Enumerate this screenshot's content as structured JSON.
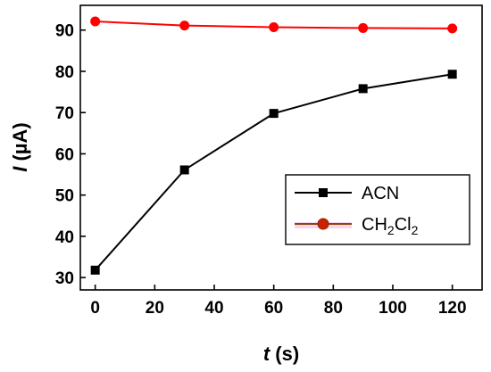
{
  "chart_data": {
    "type": "line",
    "xlabel_var": "t",
    "xlabel_unit": " (s)",
    "ylabel_var": "I",
    "ylabel_unit": " (µA)",
    "xlim": [
      -5,
      130
    ],
    "ylim": [
      27,
      96
    ],
    "xticks": [
      0,
      20,
      40,
      60,
      80,
      100,
      120
    ],
    "yticks": [
      30,
      40,
      50,
      60,
      70,
      80,
      90
    ],
    "grid": false,
    "legend_position": "center-right",
    "series": [
      {
        "name": "ACN",
        "color": "#000000",
        "marker": "square",
        "x": [
          0,
          30,
          60,
          90,
          120
        ],
        "y": [
          31.8,
          56.1,
          69.8,
          75.8,
          79.3
        ]
      },
      {
        "name_main": "CH",
        "name_sub1": "2",
        "name_mid": "Cl",
        "name_sub2": "2",
        "color": "#ff0000",
        "legend_line_color": "#8b4513",
        "marker": "circle",
        "x": [
          0,
          30,
          60,
          90,
          120
        ],
        "y": [
          92.1,
          91.1,
          90.7,
          90.5,
          90.4
        ]
      }
    ]
  }
}
